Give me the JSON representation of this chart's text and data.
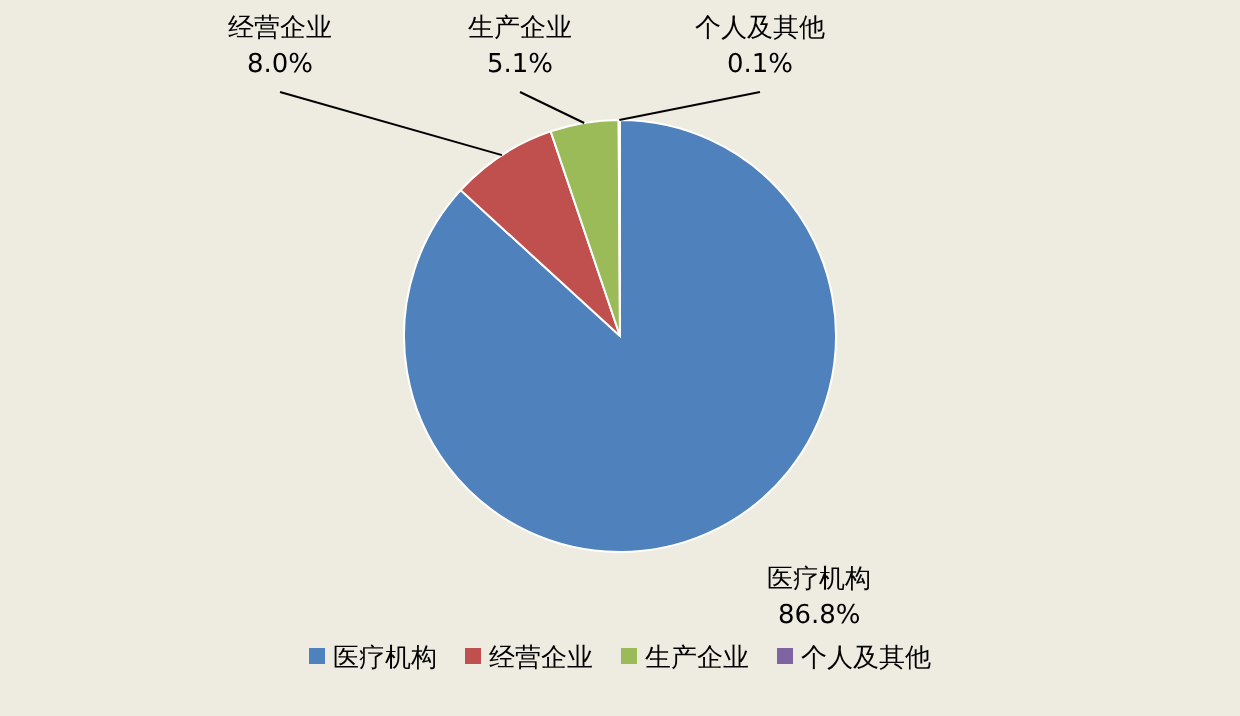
{
  "chart_data": {
    "type": "pie",
    "categories": [
      "医疗机构",
      "经营企业",
      "生产企业",
      "个人及其他"
    ],
    "values": [
      86.8,
      8.0,
      5.1,
      0.1
    ],
    "value_labels": [
      "86.8%",
      "8.0%",
      "5.1%",
      "0.1%"
    ],
    "colors": [
      "#4f81bd",
      "#c0504d",
      "#9bbb59",
      "#8064a2"
    ],
    "legend": "bottom"
  }
}
